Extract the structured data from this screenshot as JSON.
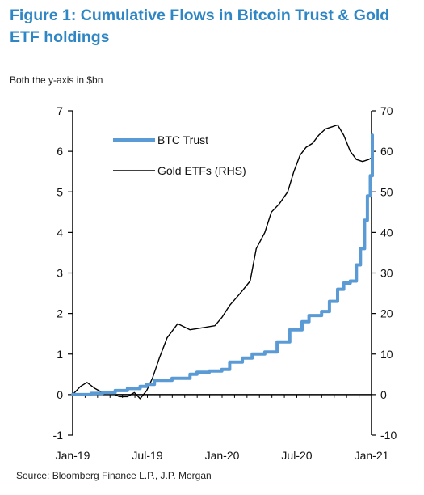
{
  "header": {
    "title": "Figure 1: Cumulative Flows in Bitcoin Trust & Gold ETF holdings",
    "subtitle": "Both the y-axis in $bn",
    "source": "Source: Bloomberg Finance L.P., J.P. Morgan"
  },
  "colors": {
    "btc": "#5b9bd5",
    "gold": "#000000",
    "axis": "#000000"
  },
  "chart_data": {
    "type": "line",
    "title": "Figure 1: Cumulative Flows in Bitcoin Trust & Gold ETF holdings",
    "subtitle": "Both the y-axis in $bn",
    "xlabel": "",
    "ylabel": "",
    "x_tick_labels": [
      "Jan-19",
      "Jul-19",
      "Jan-20",
      "Jul-20",
      "Jan-21"
    ],
    "ylim_left": [
      -1,
      7
    ],
    "ylim_right": [
      -10,
      70
    ],
    "y_ticks_left": [
      "-1",
      "0",
      "1",
      "2",
      "3",
      "4",
      "5",
      "6",
      "7"
    ],
    "y_ticks_right": [
      "-10",
      "0",
      "10",
      "20",
      "30",
      "40",
      "50",
      "60",
      "70"
    ],
    "grid": false,
    "legend": {
      "placement": "top-left"
    },
    "series": [
      {
        "name": "BTC Trust",
        "axis": "left",
        "points": [
          [
            "2019-01-01",
            0.0
          ],
          [
            "2019-02-15",
            0.03
          ],
          [
            "2019-03-15",
            0.05
          ],
          [
            "2019-04-15",
            0.1
          ],
          [
            "2019-05-15",
            0.15
          ],
          [
            "2019-06-15",
            0.2
          ],
          [
            "2019-07-01",
            0.25
          ],
          [
            "2019-07-20",
            0.35
          ],
          [
            "2019-09-01",
            0.4
          ],
          [
            "2019-10-15",
            0.5
          ],
          [
            "2019-11-01",
            0.55
          ],
          [
            "2019-12-01",
            0.58
          ],
          [
            "2020-01-01",
            0.62
          ],
          [
            "2020-01-20",
            0.8
          ],
          [
            "2020-02-20",
            0.9
          ],
          [
            "2020-03-15",
            1.0
          ],
          [
            "2020-04-15",
            1.05
          ],
          [
            "2020-05-15",
            1.3
          ],
          [
            "2020-06-15",
            1.6
          ],
          [
            "2020-07-15",
            1.8
          ],
          [
            "2020-08-01",
            1.95
          ],
          [
            "2020-09-01",
            2.05
          ],
          [
            "2020-09-20",
            2.3
          ],
          [
            "2020-10-10",
            2.6
          ],
          [
            "2020-10-25",
            2.75
          ],
          [
            "2020-11-10",
            2.8
          ],
          [
            "2020-11-25",
            3.2
          ],
          [
            "2020-12-05",
            3.6
          ],
          [
            "2020-12-15",
            4.3
          ],
          [
            "2020-12-22",
            4.9
          ],
          [
            "2020-12-29",
            5.4
          ],
          [
            "2021-01-03",
            6.4
          ]
        ]
      },
      {
        "name": "Gold ETFs (RHS)",
        "axis": "right",
        "points": [
          [
            "2019-01-01",
            0
          ],
          [
            "2019-01-20",
            2
          ],
          [
            "2019-02-05",
            3
          ],
          [
            "2019-02-25",
            1.5
          ],
          [
            "2019-03-15",
            0.5
          ],
          [
            "2019-04-05",
            0.5
          ],
          [
            "2019-04-25",
            -0.5
          ],
          [
            "2019-05-15",
            -0.5
          ],
          [
            "2019-06-01",
            0.5
          ],
          [
            "2019-06-15",
            -1
          ],
          [
            "2019-07-01",
            1
          ],
          [
            "2019-07-15",
            4
          ],
          [
            "2019-08-01",
            9
          ],
          [
            "2019-08-20",
            14
          ],
          [
            "2019-09-15",
            17.5
          ],
          [
            "2019-10-15",
            16
          ],
          [
            "2019-11-15",
            16.5
          ],
          [
            "2019-12-15",
            17
          ],
          [
            "2020-01-01",
            19
          ],
          [
            "2020-01-20",
            22
          ],
          [
            "2020-02-15",
            25
          ],
          [
            "2020-03-10",
            28
          ],
          [
            "2020-03-25",
            36
          ],
          [
            "2020-04-15",
            40
          ],
          [
            "2020-05-01",
            45
          ],
          [
            "2020-05-20",
            47
          ],
          [
            "2020-06-10",
            50
          ],
          [
            "2020-06-25",
            55
          ],
          [
            "2020-07-10",
            59
          ],
          [
            "2020-07-25",
            61
          ],
          [
            "2020-08-10",
            62
          ],
          [
            "2020-08-25",
            64
          ],
          [
            "2020-09-10",
            65.5
          ],
          [
            "2020-09-25",
            66
          ],
          [
            "2020-10-10",
            66.5
          ],
          [
            "2020-10-25",
            64
          ],
          [
            "2020-11-10",
            60
          ],
          [
            "2020-11-25",
            58
          ],
          [
            "2020-12-10",
            57.5
          ],
          [
            "2020-12-25",
            58
          ],
          [
            "2021-01-03",
            58.5
          ]
        ]
      }
    ]
  }
}
